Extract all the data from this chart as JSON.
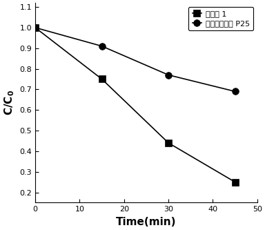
{
  "series1_label": "催化剂 1",
  "series2_label": "气相二氧化馒 P25",
  "series1_x": [
    0,
    15,
    30,
    45
  ],
  "series1_y": [
    1.0,
    0.75,
    0.44,
    0.25
  ],
  "series2_x": [
    0,
    15,
    30,
    45
  ],
  "series2_y": [
    1.0,
    0.91,
    0.77,
    0.69
  ],
  "xlabel": "Time(min)",
  "ylabel": "C/C",
  "xlim": [
    0,
    50
  ],
  "ylim": [
    0.15,
    1.12
  ],
  "xticks": [
    0,
    10,
    20,
    30,
    40,
    50
  ],
  "yticks": [
    0.2,
    0.3,
    0.4,
    0.5,
    0.6,
    0.7,
    0.8,
    0.9,
    1.0,
    1.1
  ],
  "ytick_labels": [
    "0.2",
    "0.3",
    "0.4",
    "0.5",
    "0.6",
    "0.7",
    "0.8",
    "0.9",
    "1.0",
    "1.1"
  ],
  "line_color": "#000000",
  "marker1": "s",
  "marker2": "o",
  "marker_size": 7,
  "line_width": 1.2,
  "background_color": "#ffffff"
}
